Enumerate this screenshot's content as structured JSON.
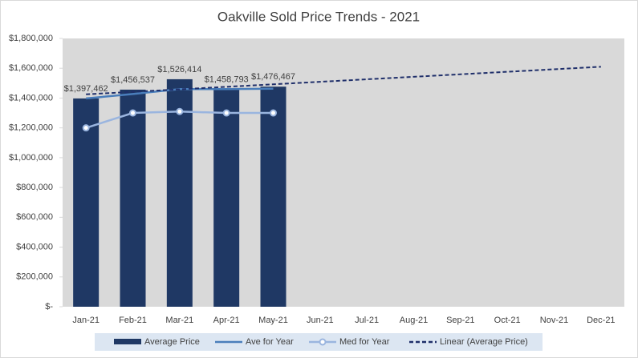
{
  "chart_data": {
    "type": "combo",
    "title": "Oakville Sold Price Trends - 2021",
    "categories": [
      "Jan-21",
      "Feb-21",
      "Mar-21",
      "Apr-21",
      "May-21",
      "Jun-21",
      "Jul-21",
      "Aug-21",
      "Sep-21",
      "Oct-21",
      "Nov-21",
      "Dec-21"
    ],
    "ylim": [
      0,
      1800000
    ],
    "yticks": [
      {
        "value": 0,
        "label": "$-"
      },
      {
        "value": 200000,
        "label": "$200,000"
      },
      {
        "value": 400000,
        "label": "$400,000"
      },
      {
        "value": 600000,
        "label": "$600,000"
      },
      {
        "value": 800000,
        "label": "$800,000"
      },
      {
        "value": 1000000,
        "label": "$1,000,000"
      },
      {
        "value": 1200000,
        "label": "$1,200,000"
      },
      {
        "value": 1400000,
        "label": "$1,400,000"
      },
      {
        "value": 1600000,
        "label": "$1,600,000"
      },
      {
        "value": 1800000,
        "label": "$1,800,000"
      }
    ],
    "legend": "bottom",
    "series": [
      {
        "name": "Average Price",
        "type": "bar",
        "color": "#1f3864",
        "values": [
          1397462,
          1456537,
          1526414,
          1458793,
          1476467,
          null,
          null,
          null,
          null,
          null,
          null,
          null
        ],
        "value_labels": [
          "$1,397,462",
          "$1,456,537",
          "$1,526,414",
          "$1,458,793",
          "$1,476,467",
          null,
          null,
          null,
          null,
          null,
          null,
          null
        ]
      },
      {
        "name": "Ave for Year",
        "type": "line",
        "color": "#4a7ebb",
        "values": [
          1397462,
          1427000,
          1460000,
          1460000,
          1463000,
          null,
          null,
          null,
          null,
          null,
          null,
          null
        ]
      },
      {
        "name": "Med for Year",
        "type": "line",
        "marker": true,
        "color": "#9ab5df",
        "values": [
          1200000,
          1300000,
          1310000,
          1300000,
          1300000,
          null,
          null,
          null,
          null,
          null,
          null,
          null
        ]
      },
      {
        "name": "Linear (Average Price)",
        "type": "line",
        "dashed": true,
        "color": "#1f2f6a",
        "values": [
          1425000,
          1441800,
          1458600,
          1475500,
          1492300,
          1509100,
          1525900,
          1542700,
          1559500,
          1576400,
          1593200,
          1610000
        ]
      }
    ]
  }
}
